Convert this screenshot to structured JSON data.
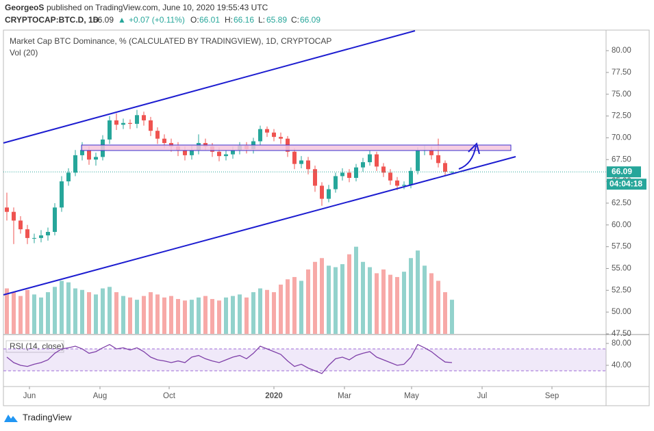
{
  "header": {
    "author": "GeorgeoS",
    "published": "published on TradingView.com, June 10, 2020 19:55:43 UTC",
    "symbol": "CRYPTOCAP:BTC.D, 1D",
    "change": "+0.07 (+0.11%)",
    "o": "O:",
    "h": "H:",
    "l": "L:",
    "c": "C:"
  },
  "chart_data": {
    "type": "candlestick",
    "title": "Market Cap BTC Dominance, % (CALCULATED BY TRADINGVIEW), 1D, CRYPTOCAP",
    "volume_label": "Vol (20)",
    "rsi_label": "RSI (14, close)",
    "countdown": "04:04:18",
    "up_color": "#26a69a",
    "down_color": "#ef5350",
    "open": [
      62,
      61.5,
      60.5,
      59.5,
      58.5,
      58.5,
      58.8,
      59.2,
      62,
      65,
      66,
      68,
      68.6,
      67.5,
      67.8,
      69.8,
      72,
      71.5,
      71.7,
      71.6,
      72.6,
      72,
      70.8,
      69.9,
      69.4,
      69,
      68.5,
      68,
      68.6,
      69.4,
      69,
      68.4,
      67.9,
      68.1,
      68.6,
      69.1,
      68.7,
      69.6,
      71,
      70.6,
      70.1,
      69.9,
      68.4,
      67,
      67.4,
      66.4,
      64.5,
      63,
      64.1,
      65.6,
      66,
      65.4,
      66.6,
      67.2,
      68.1,
      66.7,
      66,
      65.1,
      64.5,
      64.6,
      66.2,
      68.5,
      68.6,
      68,
      67.1,
      66.01
    ],
    "high": [
      63.7,
      62.0,
      61.0,
      60.0,
      59.0,
      59.4,
      59.7,
      62.5,
      65.6,
      66.5,
      68.6,
      69.5,
      69.0,
      68.3,
      70.3,
      72.5,
      72.8,
      72.2,
      72.1,
      73.2,
      73.0,
      72.4,
      71.2,
      70.4,
      69.9,
      69.5,
      69.0,
      69.1,
      70.4,
      69.9,
      69.4,
      68.9,
      68.6,
      69.0,
      69.5,
      69.5,
      70.0,
      71.4,
      71.3,
      71.0,
      70.6,
      70.2,
      68.8,
      67.9,
      67.8,
      66.8,
      64.9,
      64.6,
      66.0,
      66.5,
      66.4,
      67.0,
      67.7,
      68.5,
      68.4,
      67.1,
      66.4,
      65.5,
      65.0,
      66.6,
      68.9,
      69.1,
      69.0,
      69.9,
      67.4,
      66.16
    ],
    "low": [
      60.5,
      57.8,
      59.0,
      57.8,
      57.9,
      58.0,
      58.2,
      58.8,
      61.5,
      64.5,
      65.6,
      67.4,
      66.9,
      66.8,
      67.4,
      69.3,
      70.9,
      71.0,
      71.0,
      71.1,
      71.4,
      70.2,
      69.3,
      68.8,
      68.4,
      67.9,
      67.4,
      67.5,
      68.1,
      68.5,
      67.8,
      67.3,
      67.4,
      67.6,
      68.1,
      68.2,
      68.2,
      69.1,
      70.1,
      69.6,
      69.3,
      67.8,
      66.4,
      66.5,
      65.8,
      63.8,
      62.2,
      62.6,
      63.7,
      65.1,
      64.9,
      65.0,
      66.1,
      66.8,
      66.2,
      65.5,
      64.6,
      64.0,
      64.1,
      64.2,
      65.8,
      68.0,
      67.5,
      66.6,
      65.6,
      65.89
    ],
    "close": [
      61.5,
      60.5,
      59.5,
      58.5,
      58.5,
      58.8,
      59.2,
      62,
      65,
      66,
      68,
      68.6,
      67.5,
      67.8,
      69.8,
      72,
      71.5,
      71.7,
      71.6,
      72.6,
      72,
      70.8,
      69.9,
      69.4,
      69,
      68.5,
      68,
      68.6,
      69.4,
      69,
      68.4,
      67.9,
      68.1,
      68.6,
      69.1,
      68.7,
      69.6,
      71,
      70.6,
      70.1,
      69.9,
      68.4,
      67,
      67.4,
      66.4,
      64.5,
      63,
      64.1,
      65.6,
      66,
      65.4,
      66.6,
      67.2,
      68.1,
      66.7,
      66,
      65.1,
      64.5,
      64.6,
      66.2,
      68.5,
      68.6,
      68,
      67.1,
      66.1,
      66.09
    ],
    "volume": [
      60,
      55,
      50,
      58,
      52,
      48,
      55,
      62,
      70,
      68,
      60,
      58,
      55,
      52,
      60,
      62,
      55,
      50,
      48,
      45,
      50,
      55,
      52,
      48,
      50,
      46,
      44,
      45,
      48,
      50,
      46,
      44,
      48,
      50,
      52,
      48,
      55,
      60,
      58,
      55,
      65,
      72,
      75,
      70,
      85,
      95,
      100,
      90,
      88,
      92,
      105,
      115,
      95,
      88,
      80,
      85,
      78,
      75,
      82,
      100,
      110,
      90,
      80,
      70,
      55,
      45
    ],
    "volume_ylim": [
      0,
      400
    ],
    "rsi": [
      55,
      45,
      40,
      38,
      42,
      45,
      50,
      62,
      70,
      72,
      75,
      70,
      62,
      65,
      72,
      78,
      70,
      72,
      68,
      72,
      65,
      55,
      50,
      48,
      45,
      48,
      45,
      55,
      58,
      52,
      48,
      45,
      50,
      55,
      58,
      52,
      62,
      75,
      70,
      65,
      60,
      48,
      38,
      42,
      35,
      30,
      25,
      40,
      52,
      55,
      50,
      58,
      62,
      65,
      55,
      50,
      45,
      40,
      42,
      55,
      78,
      72,
      65,
      55,
      46,
      45
    ],
    "rsi_color": "#7e3fa8",
    "rsi_bands": [
      70,
      30
    ],
    "rsi_ylim": [
      1.25,
      95
    ],
    "rsi_yticks": [
      {
        "value": 80,
        "label": "80.00"
      },
      {
        "value": 40,
        "label": "40.00"
      }
    ],
    "xlim": [
      -0.5,
      87.5
    ],
    "xticks": [
      {
        "value": 3.3,
        "label": "Jun"
      },
      {
        "value": 13.6,
        "label": "Aug"
      },
      {
        "value": 23.7,
        "label": "Oct"
      },
      {
        "value": 39,
        "label": "2020"
      },
      {
        "value": 49.3,
        "label": "Mar"
      },
      {
        "value": 59.1,
        "label": "May"
      },
      {
        "value": 69.4,
        "label": "Jul"
      },
      {
        "value": 79.6,
        "label": "Sep"
      }
    ],
    "ylim": [
      47.5,
      82.28
    ],
    "yticks": [
      {
        "value": 47.5,
        "label": "47.50"
      },
      {
        "value": 50,
        "label": "50.00"
      },
      {
        "value": 52.5,
        "label": "52.50"
      },
      {
        "value": 55,
        "label": "55.00"
      },
      {
        "value": 57.5,
        "label": "57.50"
      },
      {
        "value": 60,
        "label": "60.00"
      },
      {
        "value": 62.5,
        "label": "62.50"
      },
      {
        "value": 65,
        "label": "65.00"
      },
      {
        "value": 67.5,
        "label": "67.50"
      },
      {
        "value": 70,
        "label": "70.00"
      },
      {
        "value": 72.5,
        "label": "72.50"
      },
      {
        "value": 75,
        "label": "75.00"
      },
      {
        "value": 77.5,
        "label": "77.50"
      },
      {
        "value": 80,
        "label": "80.00"
      }
    ]
  },
  "footer": {
    "brand": "TradingView"
  }
}
